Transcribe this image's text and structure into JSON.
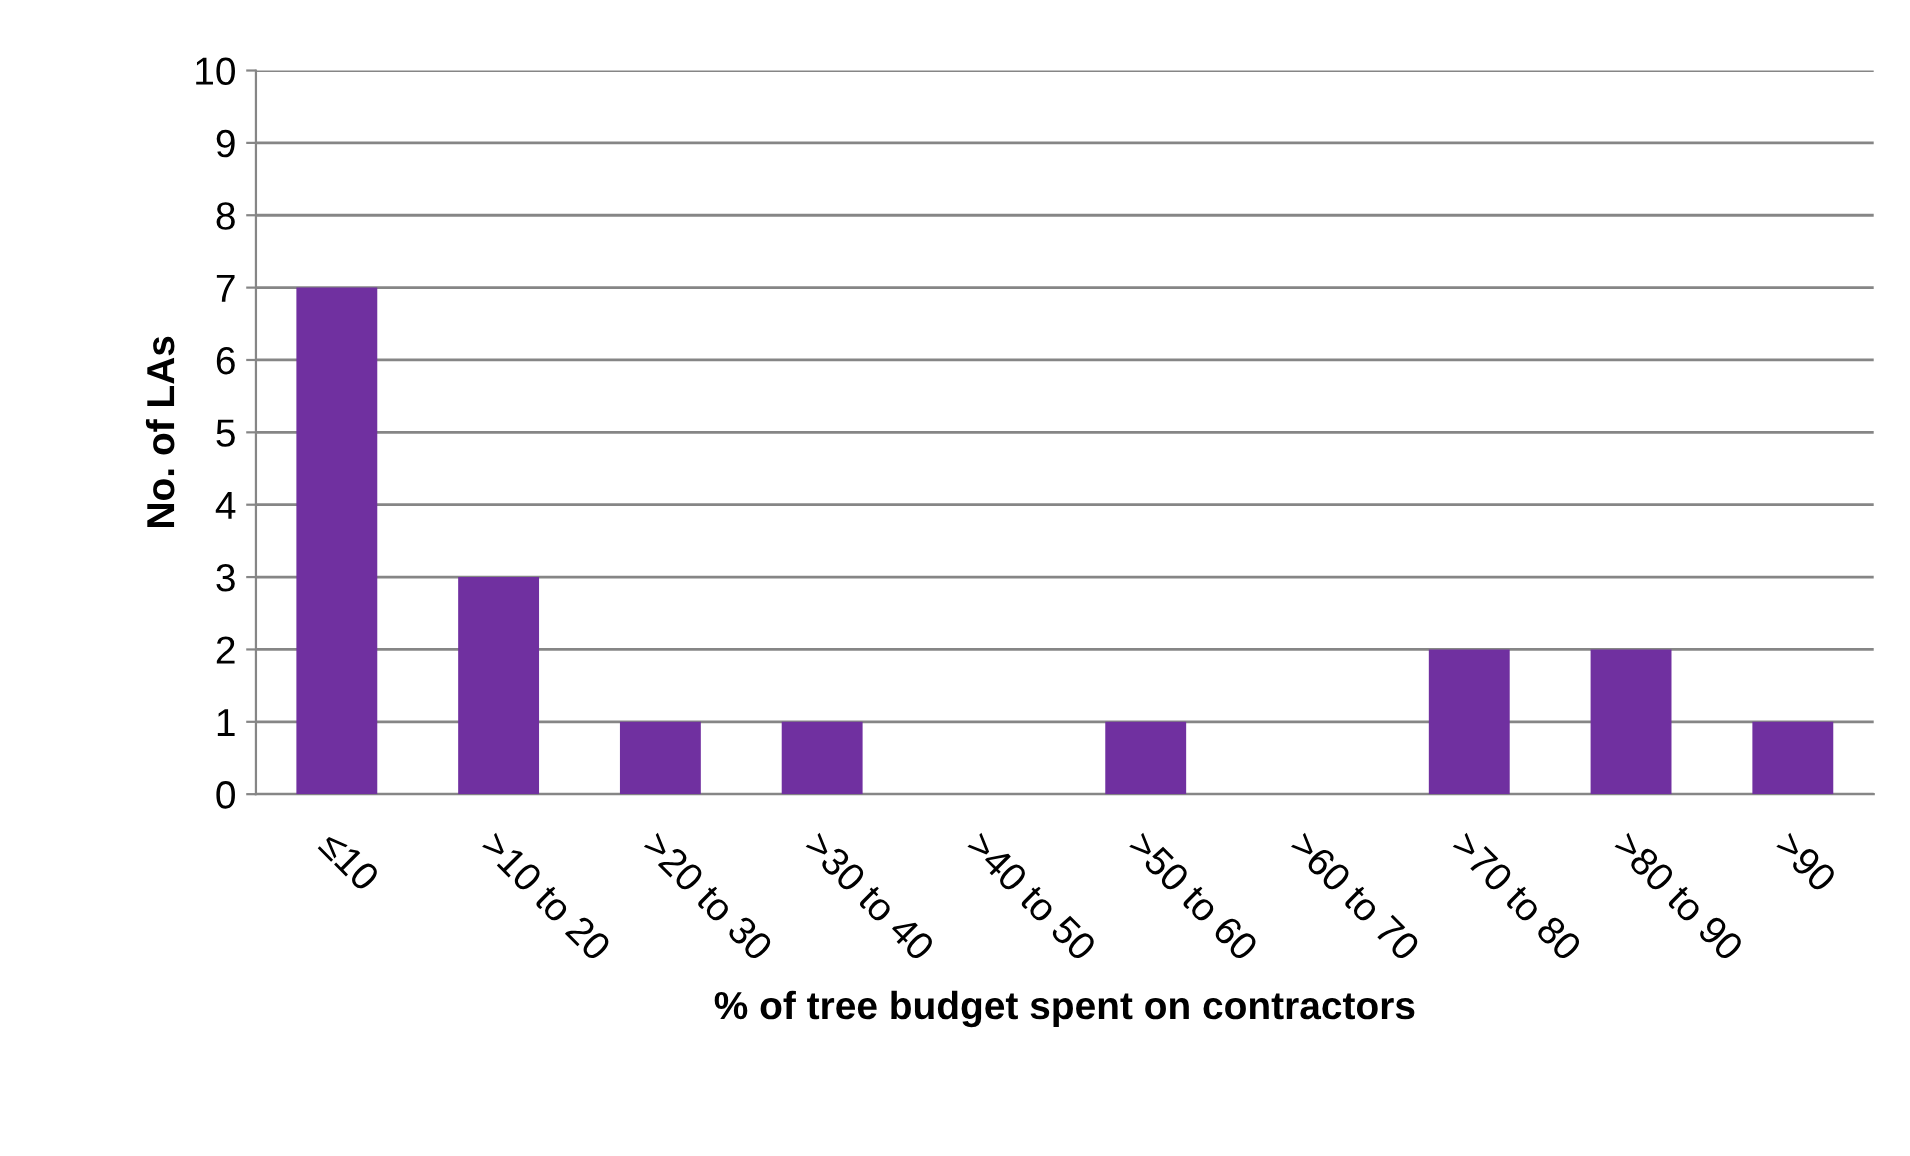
{
  "chart_data": {
    "type": "bar",
    "xlabel": "% of tree budget spent on contractors",
    "ylabel": "No. of LAs",
    "categories": [
      "≤10",
      ">10 to 20",
      ">20 to 30",
      ">30 to 40",
      ">40 to 50",
      ">50 to 60",
      ">60 to 70",
      ">70 to 80",
      ">80 to 90",
      ">90"
    ],
    "values": [
      7,
      3,
      1,
      1,
      0,
      1,
      0,
      2,
      2,
      1
    ],
    "color": "#7030a0",
    "ylim": [
      0,
      10
    ],
    "yticks": [
      0,
      1,
      2,
      3,
      4,
      5,
      6,
      7,
      8,
      9,
      10
    ],
    "grid": "y",
    "legend": false
  }
}
